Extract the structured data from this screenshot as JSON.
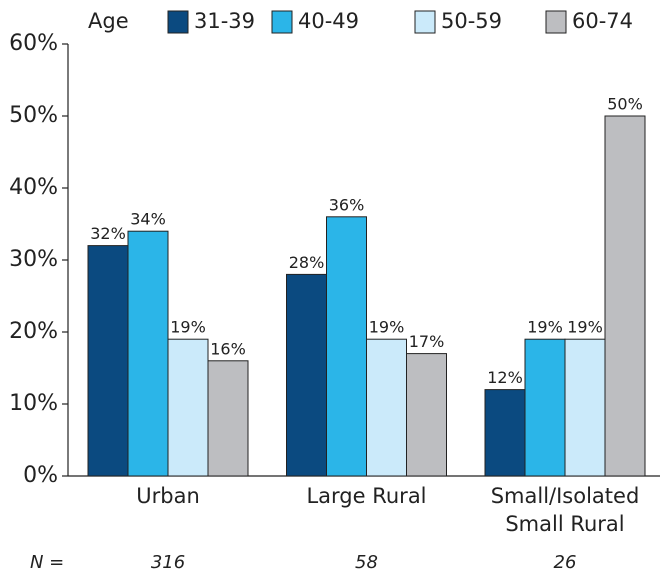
{
  "chart_data": {
    "type": "bar",
    "legend_title": "Age",
    "categories": [
      "Urban",
      "Large Rural",
      "Small/Isolated Small Rural"
    ],
    "series": [
      {
        "name": "31-39",
        "color": "#0b4a80",
        "values": [
          32,
          28,
          12
        ],
        "value_labels": [
          "32%",
          "28%",
          "12%"
        ]
      },
      {
        "name": "40-49",
        "color": "#2bb5e8",
        "values": [
          34,
          36,
          19
        ],
        "value_labels": [
          "34%",
          "36%",
          "19%"
        ]
      },
      {
        "name": "50-59",
        "color": "#cbeafa",
        "values": [
          19,
          19,
          19
        ],
        "value_labels": [
          "19%",
          "19%",
          "19%"
        ]
      },
      {
        "name": "60-74",
        "color": "#bdbec1",
        "values": [
          16,
          17,
          50
        ],
        "value_labels": [
          "16%",
          "17%",
          "50%"
        ]
      }
    ],
    "ylim": [
      0,
      60
    ],
    "yticks": [
      {
        "value": 0,
        "label": "0%"
      },
      {
        "value": 10,
        "label": "10%"
      },
      {
        "value": 20,
        "label": "20%"
      },
      {
        "value": 30,
        "label": "30%"
      },
      {
        "value": 40,
        "label": "40%"
      },
      {
        "value": 50,
        "label": "50%"
      },
      {
        "value": 60,
        "label": "60%"
      }
    ],
    "n_label": "N =",
    "n_values": [
      316,
      58,
      26
    ]
  }
}
